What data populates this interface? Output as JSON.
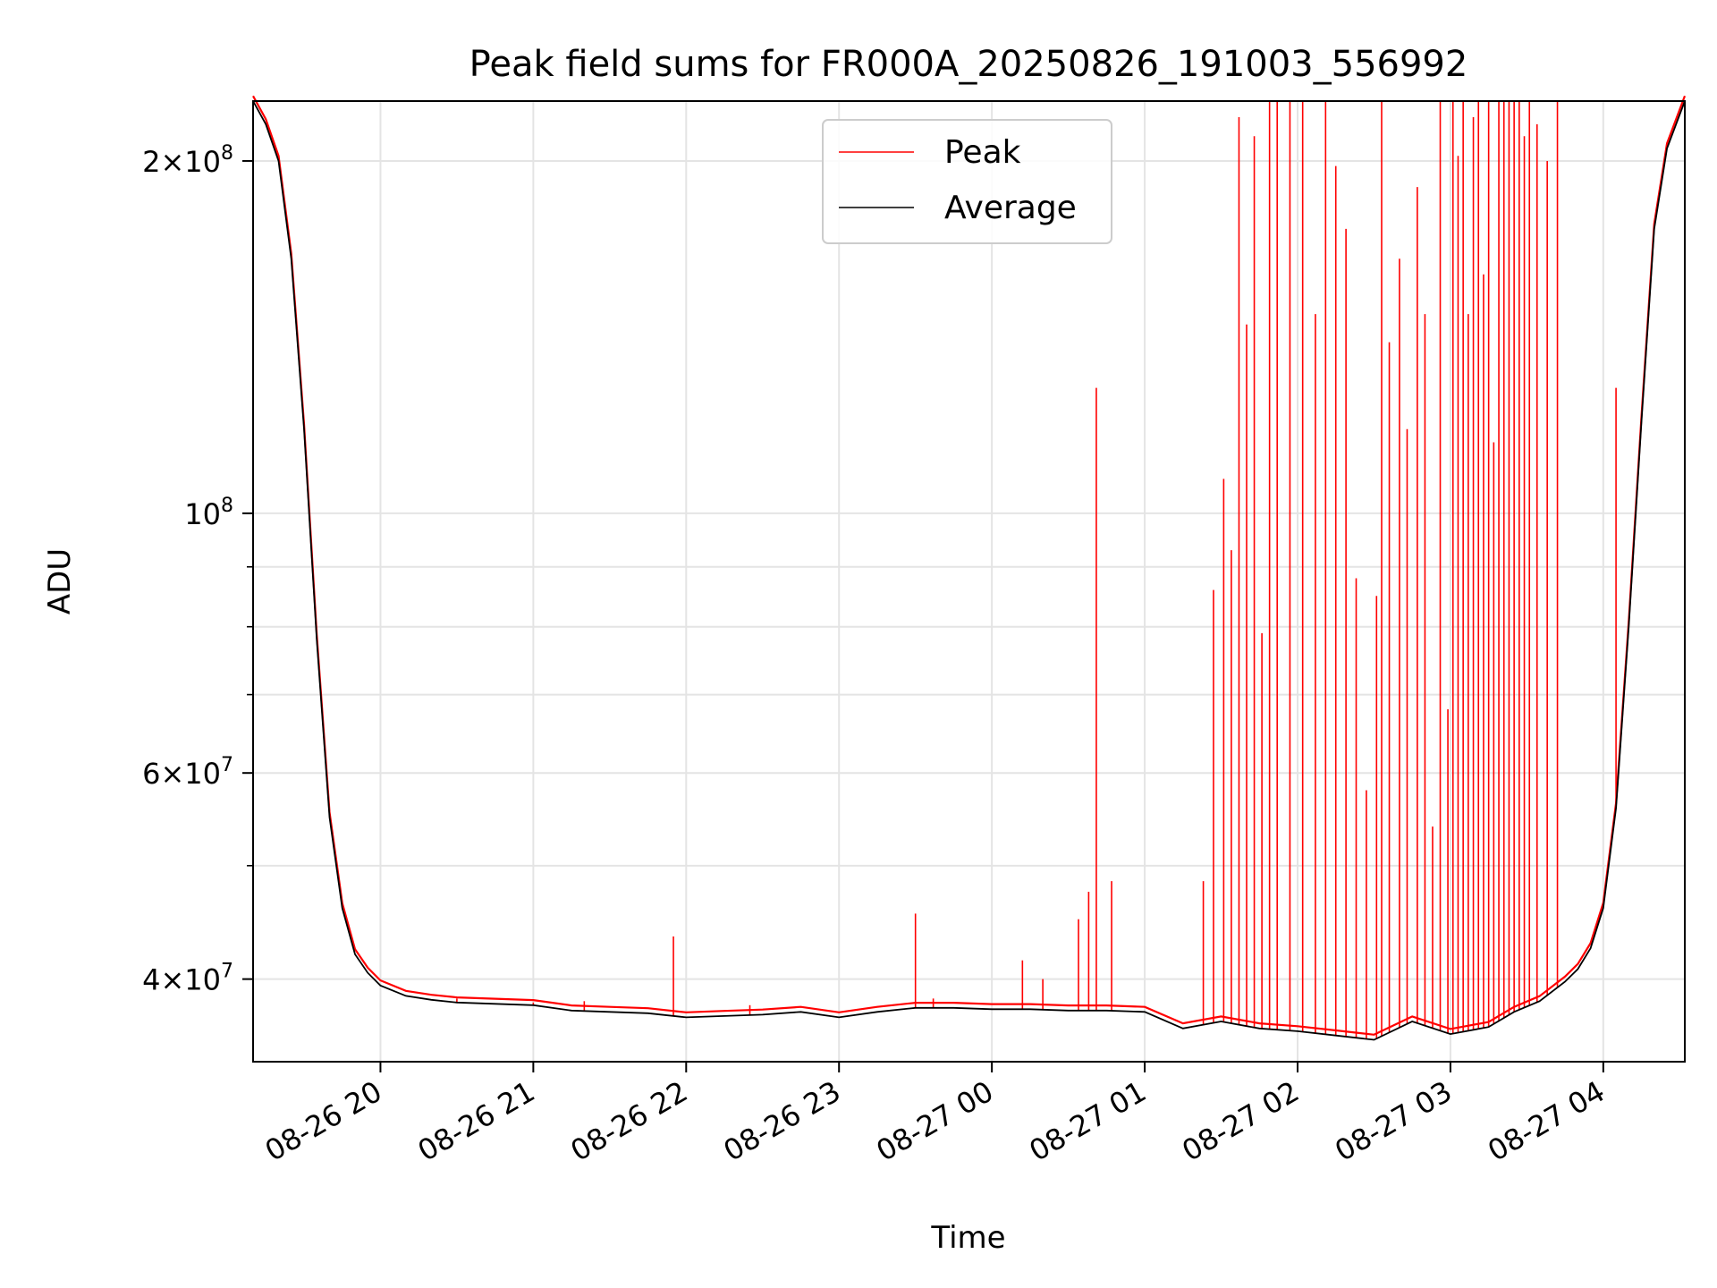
{
  "chart_data": {
    "type": "line",
    "title": "Peak field sums for FR000A_20250826_191003_556992",
    "xlabel": "Time",
    "ylabel": "ADU",
    "y_scale": "log",
    "xlim": [
      "2025-08-26 19:10",
      "2025-08-27 04:32"
    ],
    "ylim": [
      34000000,
      225000000
    ],
    "x_ticks": [
      "08-26 20",
      "08-26 21",
      "08-26 22",
      "08-26 23",
      "08-27 00",
      "08-27 01",
      "08-27 02",
      "08-27 03",
      "08-27 04"
    ],
    "x_tick_times": [
      "2025-08-26 20:00",
      "2025-08-26 21:00",
      "2025-08-26 22:00",
      "2025-08-26 23:00",
      "2025-08-27 00:00",
      "2025-08-27 01:00",
      "2025-08-27 02:00",
      "2025-08-27 03:00",
      "2025-08-27 04:00"
    ],
    "y_ticks": [
      {
        "value": 200000000,
        "mant": "2",
        "exp": "8"
      },
      {
        "value": 100000000,
        "mant": "",
        "exp": "8"
      },
      {
        "value": 60000000,
        "mant": "6",
        "exp": "7"
      },
      {
        "value": 40000000,
        "mant": "4",
        "exp": "7"
      }
    ],
    "y_minor_ticks": [
      300000000,
      90000000,
      80000000,
      70000000,
      50000000
    ],
    "grid": true,
    "legend_position": "top-center",
    "series": [
      {
        "name": "Average",
        "color": "#000000",
        "x": [
          "2025-08-26 19:10",
          "2025-08-26 19:15",
          "2025-08-26 19:20",
          "2025-08-26 19:25",
          "2025-08-26 19:30",
          "2025-08-26 19:35",
          "2025-08-26 19:40",
          "2025-08-26 19:45",
          "2025-08-26 19:50",
          "2025-08-26 19:55",
          "2025-08-26 20:00",
          "2025-08-26 20:10",
          "2025-08-26 20:20",
          "2025-08-26 20:30",
          "2025-08-26 20:45",
          "2025-08-26 21:00",
          "2025-08-26 21:15",
          "2025-08-26 21:30",
          "2025-08-26 21:45",
          "2025-08-26 22:00",
          "2025-08-26 22:15",
          "2025-08-26 22:30",
          "2025-08-26 22:45",
          "2025-08-26 23:00",
          "2025-08-26 23:15",
          "2025-08-26 23:30",
          "2025-08-26 23:45",
          "2025-08-27 00:00",
          "2025-08-27 00:15",
          "2025-08-27 00:30",
          "2025-08-27 00:45",
          "2025-08-27 01:00",
          "2025-08-27 01:15",
          "2025-08-27 01:30",
          "2025-08-27 01:45",
          "2025-08-27 02:00",
          "2025-08-27 02:15",
          "2025-08-27 02:30",
          "2025-08-27 02:45",
          "2025-08-27 03:00",
          "2025-08-27 03:15",
          "2025-08-27 03:25",
          "2025-08-27 03:35",
          "2025-08-27 03:45",
          "2025-08-27 03:50",
          "2025-08-27 03:55",
          "2025-08-27 04:00",
          "2025-08-27 04:05",
          "2025-08-27 04:10",
          "2025-08-27 04:15",
          "2025-08-27 04:20",
          "2025-08-27 04:25",
          "2025-08-27 04:32"
        ],
        "values": [
          225000000,
          215000000,
          200000000,
          165000000,
          118000000,
          78000000,
          55000000,
          46000000,
          42000000,
          40500000,
          39500000,
          38700000,
          38400000,
          38200000,
          38100000,
          38000000,
          37600000,
          37500000,
          37400000,
          37100000,
          37200000,
          37300000,
          37500000,
          37100000,
          37500000,
          37800000,
          37800000,
          37700000,
          37700000,
          37600000,
          37600000,
          37500000,
          36300000,
          36800000,
          36300000,
          36100000,
          35800000,
          35500000,
          36800000,
          35900000,
          36400000,
          37500000,
          38300000,
          39800000,
          40800000,
          42500000,
          46000000,
          56000000,
          80000000,
          120000000,
          175000000,
          205000000,
          225000000
        ]
      },
      {
        "name": "Peak",
        "color": "#ff0000",
        "spikes": {
          "x": [
            "2025-08-26 20:30",
            "2025-08-26 21:00",
            "2025-08-26 21:20",
            "2025-08-26 21:55",
            "2025-08-26 22:25",
            "2025-08-26 23:30",
            "2025-08-26 23:37",
            "2025-08-27 00:12",
            "2025-08-27 00:20",
            "2025-08-27 00:34",
            "2025-08-27 00:38",
            "2025-08-27 00:41",
            "2025-08-27 00:47",
            "2025-08-27 01:23",
            "2025-08-27 01:27",
            "2025-08-27 01:31",
            "2025-08-27 01:34",
            "2025-08-27 01:37",
            "2025-08-27 01:40",
            "2025-08-27 01:43",
            "2025-08-27 01:46",
            "2025-08-27 01:49",
            "2025-08-27 01:52",
            "2025-08-27 01:57",
            "2025-08-27 02:02",
            "2025-08-27 02:07",
            "2025-08-27 02:11",
            "2025-08-27 02:15",
            "2025-08-27 02:19",
            "2025-08-27 02:23",
            "2025-08-27 02:27",
            "2025-08-27 02:31",
            "2025-08-27 02:33",
            "2025-08-27 02:36",
            "2025-08-27 02:40",
            "2025-08-27 02:43",
            "2025-08-27 02:47",
            "2025-08-27 02:50",
            "2025-08-27 02:53",
            "2025-08-27 02:56",
            "2025-08-27 02:59",
            "2025-08-27 03:01",
            "2025-08-27 03:03",
            "2025-08-27 03:05",
            "2025-08-27 03:07",
            "2025-08-27 03:09",
            "2025-08-27 03:11",
            "2025-08-27 03:13",
            "2025-08-27 03:15",
            "2025-08-27 03:17",
            "2025-08-27 03:19",
            "2025-08-27 03:21",
            "2025-08-27 03:23",
            "2025-08-27 03:25",
            "2025-08-27 03:27",
            "2025-08-27 03:29",
            "2025-08-27 03:31",
            "2025-08-27 03:34",
            "2025-08-27 03:38",
            "2025-08-27 03:42",
            "2025-08-27 04:05"
          ],
          "values": [
            38500000,
            38200000,
            38300000,
            43500000,
            38000000,
            45500000,
            38500000,
            41500000,
            40000000,
            45000000,
            47500000,
            128000000,
            48500000,
            48500000,
            86000000,
            107000000,
            93000000,
            218000000,
            145000000,
            210000000,
            79000000,
            225000000,
            225000000,
            225000000,
            225000000,
            148000000,
            225000000,
            198000000,
            175000000,
            88000000,
            58000000,
            85000000,
            225000000,
            140000000,
            165000000,
            118000000,
            190000000,
            148000000,
            54000000,
            225000000,
            68000000,
            225000000,
            202000000,
            225000000,
            148000000,
            218000000,
            225000000,
            160000000,
            225000000,
            115000000,
            225000000,
            225000000,
            225000000,
            225000000,
            225000000,
            210000000,
            225000000,
            215000000,
            200000000,
            225000000,
            128000000
          ]
        }
      }
    ]
  }
}
